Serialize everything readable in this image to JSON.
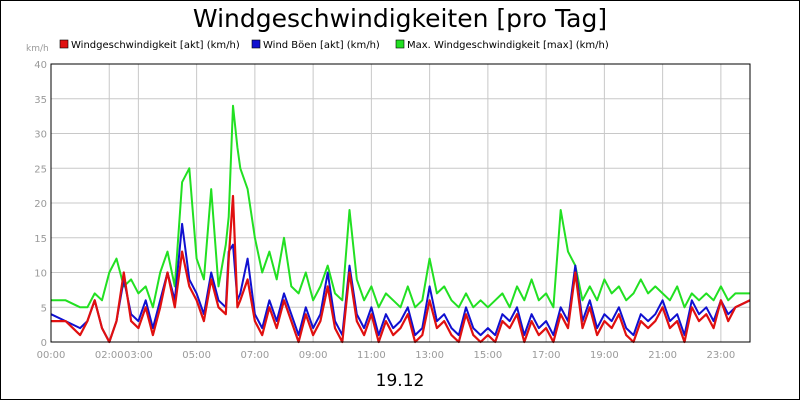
{
  "chart_data": {
    "type": "line",
    "title": "Windgeschwindigkeiten [pro Tag]",
    "ylabel": "km/h",
    "xlabel": "19.12",
    "ylim": [
      0,
      40
    ],
    "xlim": [
      0,
      24
    ],
    "grid": true,
    "legend_position": "top",
    "y_ticks": [
      "0",
      "5",
      "10",
      "15",
      "20",
      "25",
      "30",
      "35",
      "40"
    ],
    "x_ticks": [
      {
        "x": 0,
        "label": "00:00"
      },
      {
        "x": 2,
        "label": "02:00"
      },
      {
        "x": 3,
        "label": "03:00"
      },
      {
        "x": 5,
        "label": "05:00"
      },
      {
        "x": 7,
        "label": "07:00"
      },
      {
        "x": 9,
        "label": "09:00"
      },
      {
        "x": 11,
        "label": "11:00"
      },
      {
        "x": 13,
        "label": "13:00"
      },
      {
        "x": 15,
        "label": "15:00"
      },
      {
        "x": 17,
        "label": "17:00"
      },
      {
        "x": 19,
        "label": "19:00"
      },
      {
        "x": 21,
        "label": "21:00"
      },
      {
        "x": 23,
        "label": "23:00"
      }
    ],
    "x": [
      0.0,
      0.5,
      1.0,
      1.25,
      1.5,
      1.75,
      2.0,
      2.25,
      2.5,
      2.75,
      3.0,
      3.25,
      3.5,
      3.75,
      4.0,
      4.25,
      4.5,
      4.75,
      5.0,
      5.25,
      5.5,
      5.75,
      6.0,
      6.1,
      6.25,
      6.4,
      6.5,
      6.75,
      7.0,
      7.25,
      7.5,
      7.75,
      8.0,
      8.25,
      8.5,
      8.75,
      9.0,
      9.25,
      9.5,
      9.75,
      10.0,
      10.25,
      10.5,
      10.75,
      11.0,
      11.25,
      11.5,
      11.75,
      12.0,
      12.25,
      12.5,
      12.75,
      13.0,
      13.25,
      13.5,
      13.75,
      14.0,
      14.25,
      14.5,
      14.75,
      15.0,
      15.25,
      15.5,
      15.75,
      16.0,
      16.25,
      16.5,
      16.75,
      17.0,
      17.25,
      17.5,
      17.75,
      18.0,
      18.25,
      18.5,
      18.75,
      19.0,
      19.25,
      19.5,
      19.75,
      20.0,
      20.25,
      20.5,
      20.75,
      21.0,
      21.25,
      21.5,
      21.75,
      22.0,
      22.25,
      22.5,
      22.75,
      23.0,
      23.25,
      23.5,
      24.0
    ],
    "series": [
      {
        "name": "Windgeschwindigkeit [akt] (km/h)",
        "color": "#e01010",
        "values": [
          3,
          3,
          1,
          3,
          6,
          2,
          0,
          3,
          10,
          3,
          2,
          5,
          1,
          5,
          10,
          5,
          13,
          8,
          6,
          3,
          9,
          5,
          4,
          12,
          21,
          5,
          6,
          9,
          3,
          1,
          5,
          2,
          6,
          3,
          0,
          4,
          1,
          3,
          8,
          2,
          0,
          10,
          3,
          1,
          4,
          0,
          3,
          1,
          2,
          4,
          0,
          1,
          6,
          2,
          3,
          1,
          0,
          4,
          1,
          0,
          1,
          0,
          3,
          2,
          4,
          0,
          3,
          1,
          2,
          0,
          4,
          2,
          10,
          2,
          5,
          1,
          3,
          2,
          4,
          1,
          0,
          3,
          2,
          3,
          5,
          2,
          3,
          0,
          5,
          3,
          4,
          2,
          6,
          3,
          5,
          6
        ]
      },
      {
        "name": "Wind Böen [akt] (km/h)",
        "color": "#1010d0",
        "values": [
          4,
          3,
          2,
          3,
          6,
          2,
          0,
          3,
          9,
          4,
          3,
          6,
          2,
          6,
          10,
          6,
          17,
          9,
          7,
          4,
          10,
          6,
          5,
          13,
          14,
          6,
          7,
          12,
          4,
          2,
          6,
          3,
          7,
          4,
          1,
          5,
          2,
          4,
          10,
          3,
          1,
          11,
          4,
          2,
          5,
          1,
          4,
          2,
          3,
          5,
          1,
          2,
          8,
          3,
          4,
          2,
          1,
          5,
          2,
          1,
          2,
          1,
          4,
          3,
          5,
          1,
          4,
          2,
          3,
          1,
          5,
          3,
          11,
          3,
          6,
          2,
          4,
          3,
          5,
          2,
          1,
          4,
          3,
          4,
          6,
          3,
          4,
          1,
          6,
          4,
          5,
          3,
          6,
          4,
          5,
          6
        ]
      },
      {
        "name": "Max. Windgeschwindigkeit [max] (km/h)",
        "color": "#22e022",
        "values": [
          6,
          6,
          5,
          5,
          7,
          6,
          10,
          12,
          8,
          9,
          7,
          8,
          5,
          10,
          13,
          8,
          23,
          25,
          12,
          9,
          22,
          8,
          14,
          18,
          34,
          28,
          25,
          22,
          15,
          10,
          13,
          9,
          15,
          8,
          7,
          10,
          6,
          8,
          11,
          7,
          6,
          19,
          9,
          6,
          8,
          5,
          7,
          6,
          5,
          8,
          5,
          6,
          12,
          7,
          8,
          6,
          5,
          7,
          5,
          6,
          5,
          6,
          7,
          5,
          8,
          6,
          9,
          6,
          7,
          5,
          19,
          13,
          11,
          6,
          8,
          6,
          9,
          7,
          8,
          6,
          7,
          9,
          7,
          8,
          7,
          6,
          8,
          5,
          7,
          6,
          7,
          6,
          8,
          6,
          7,
          7
        ]
      }
    ]
  }
}
